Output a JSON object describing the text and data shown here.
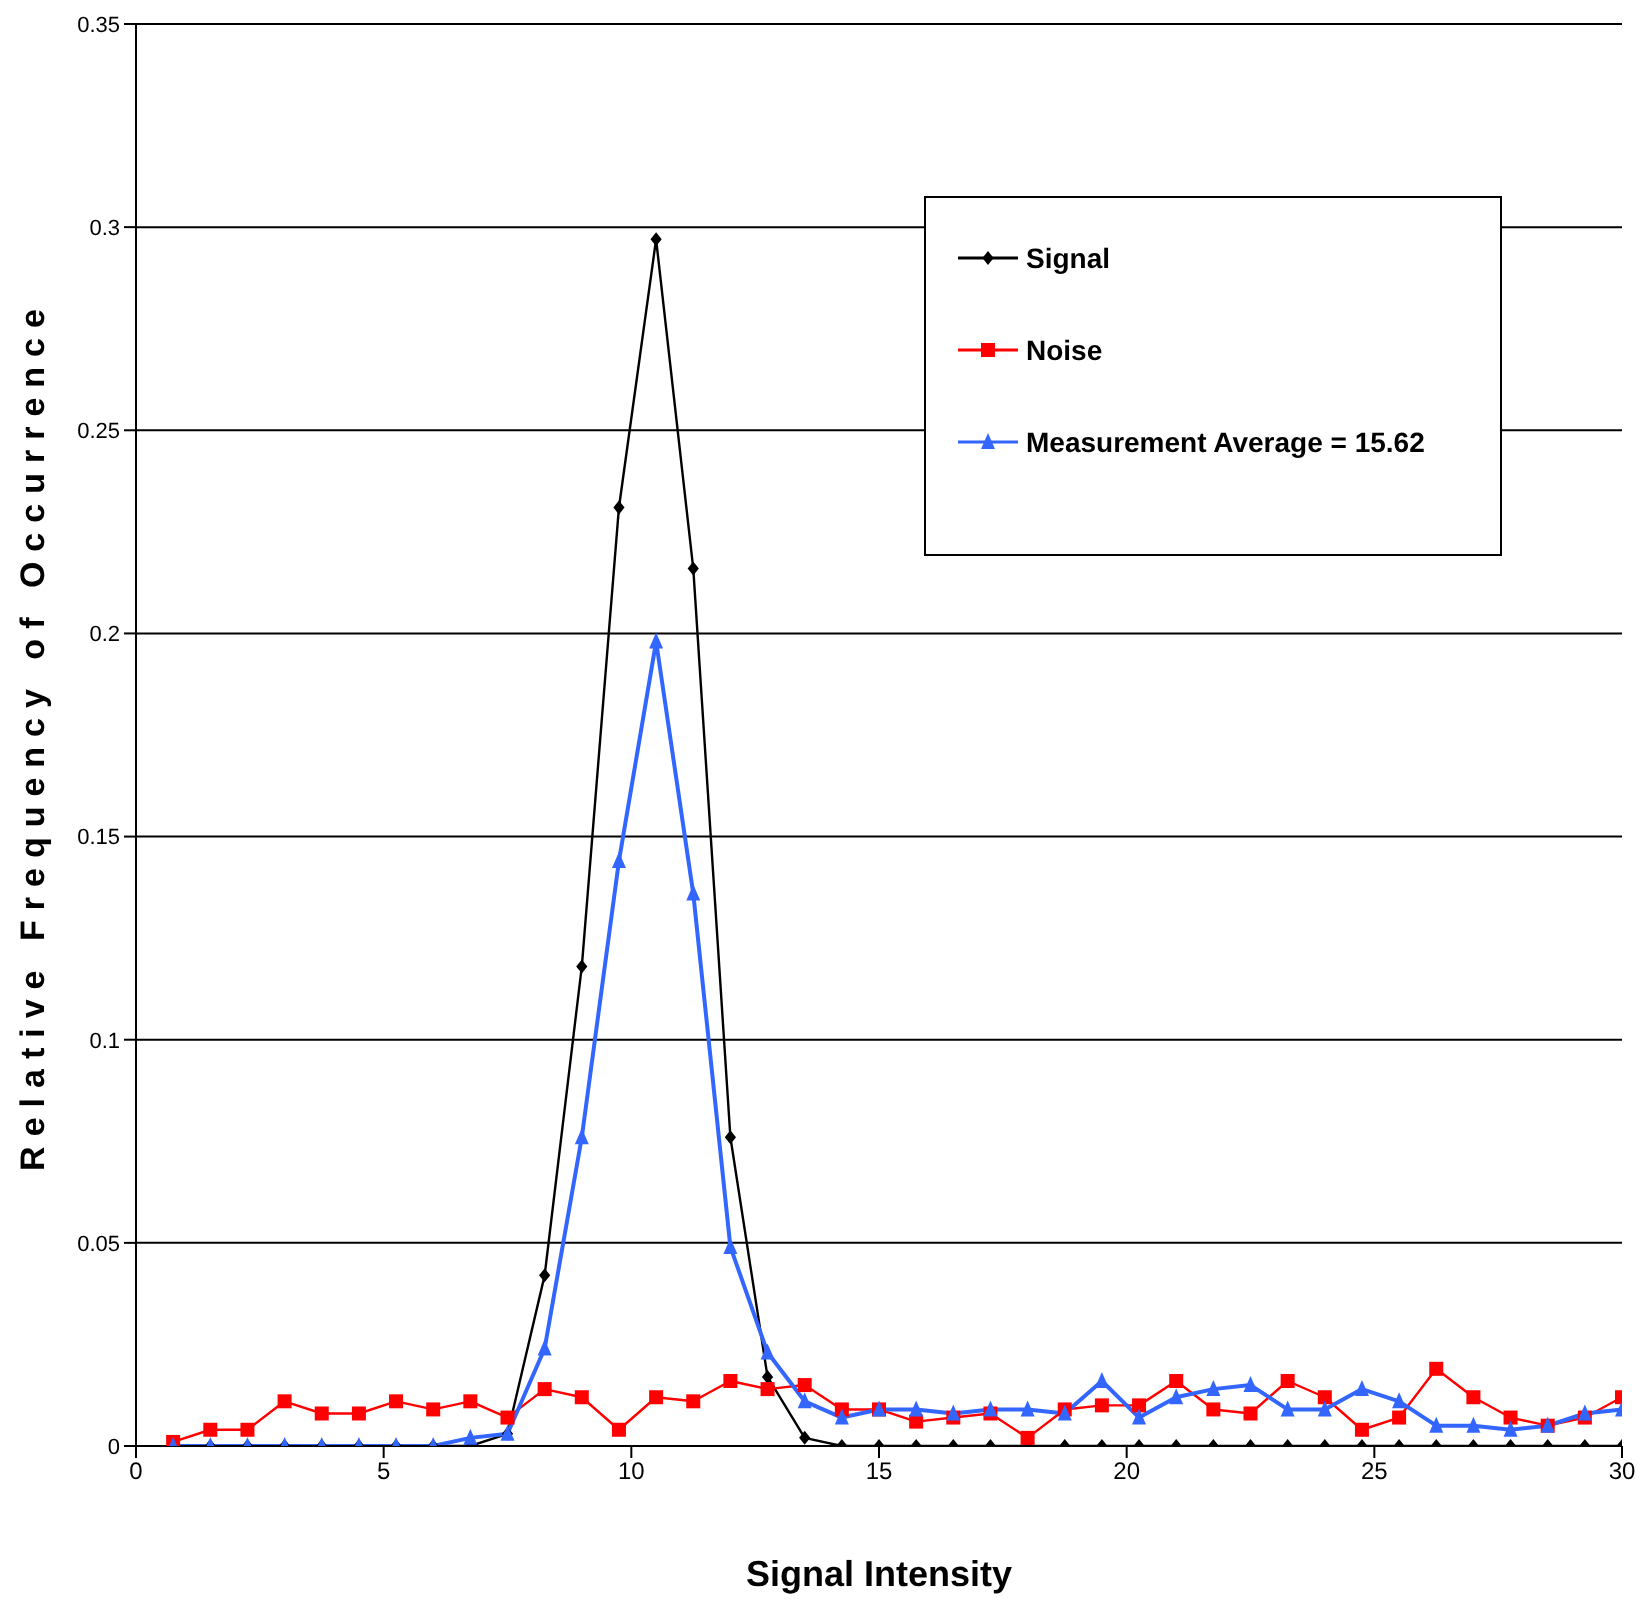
{
  "chart_data": {
    "type": "line",
    "xlabel": "Signal Intensity",
    "ylabel": "Relative Frequency of Occurrence",
    "x": [
      0.75,
      1.5,
      2.25,
      3,
      3.75,
      4.5,
      5.25,
      6,
      6.75,
      7.5,
      8.25,
      9,
      9.75,
      10.5,
      11.25,
      12,
      12.75,
      13.5,
      14.25,
      15,
      15.75,
      16.5,
      17.25,
      18,
      18.75,
      19.5,
      20.25,
      21,
      21.75,
      22.5,
      23.25,
      24,
      24.75,
      25.5,
      26.25,
      27,
      27.75,
      28.5,
      29.25,
      30
    ],
    "series": [
      {
        "name": "Signal",
        "color": "#000000",
        "marker": "diamond",
        "values": [
          0,
          0,
          0,
          0,
          0,
          0,
          0,
          0,
          0,
          0.003,
          0.042,
          0.118,
          0.231,
          0.297,
          0.216,
          0.076,
          0.017,
          0.002,
          0,
          0,
          0,
          0,
          0,
          0,
          0,
          0,
          0,
          0,
          0,
          0,
          0,
          0,
          0,
          0,
          0,
          0,
          0,
          0,
          0,
          0
        ]
      },
      {
        "name": "Noise",
        "color": "#ff0000",
        "marker": "square",
        "values": [
          0.001,
          0.004,
          0.004,
          0.011,
          0.008,
          0.008,
          0.011,
          0.009,
          0.011,
          0.007,
          0.014,
          0.012,
          0.004,
          0.012,
          0.011,
          0.016,
          0.014,
          0.015,
          0.009,
          0.009,
          0.006,
          0.007,
          0.008,
          0.002,
          0.009,
          0.01,
          0.01,
          0.016,
          0.009,
          0.008,
          0.016,
          0.012,
          0.004,
          0.007,
          0.019,
          0.012,
          0.007,
          0.005,
          0.007,
          0.012
        ]
      },
      {
        "name": "Measurement Average = 15.62",
        "color": "#3366ff",
        "marker": "triangle",
        "values": [
          0,
          0,
          0,
          0,
          0,
          0,
          0,
          0,
          0.002,
          0.003,
          0.024,
          0.076,
          0.144,
          0.198,
          0.136,
          0.049,
          0.023,
          0.011,
          0.007,
          0.009,
          0.009,
          0.008,
          0.009,
          0.009,
          0.008,
          0.016,
          0.007,
          0.012,
          0.014,
          0.015,
          0.009,
          0.009,
          0.014,
          0.011,
          0.005,
          0.005,
          0.004,
          0.005,
          0.008,
          0.009
        ]
      }
    ],
    "xlim": [
      0,
      30
    ],
    "xticks": [
      0,
      5,
      10,
      15,
      20,
      25,
      30
    ],
    "ylim": [
      0,
      0.35
    ],
    "yticks": [
      0,
      0.05,
      0.1,
      0.15,
      0.2,
      0.25,
      0.3,
      0.35
    ],
    "grid": "y",
    "legend": "top right"
  }
}
